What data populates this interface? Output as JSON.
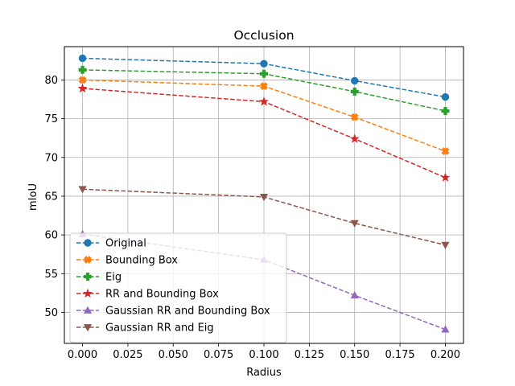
{
  "chart_data": {
    "type": "line",
    "title": "Occlusion",
    "xlabel": "Radius",
    "ylabel": "mIoU",
    "x": [
      0.0,
      0.1,
      0.15,
      0.2
    ],
    "xlim": [
      -0.01,
      0.21
    ],
    "ylim": [
      46,
      84.3
    ],
    "xticks": [
      0.0,
      0.025,
      0.05,
      0.075,
      0.1,
      0.125,
      0.15,
      0.175,
      0.2
    ],
    "xtick_labels": [
      "0.000",
      "0.025",
      "0.050",
      "0.075",
      "0.100",
      "0.125",
      "0.150",
      "0.175",
      "0.200"
    ],
    "yticks": [
      50,
      55,
      60,
      65,
      70,
      75,
      80
    ],
    "ytick_labels": [
      "50",
      "55",
      "60",
      "65",
      "70",
      "75",
      "80"
    ],
    "grid": true,
    "legend_position": "lower-left",
    "series": [
      {
        "name": "Original",
        "values": [
          82.8,
          82.1,
          79.9,
          77.8
        ],
        "color": "#1f77b4",
        "marker": "circle",
        "linestyle": "dashed"
      },
      {
        "name": "Bounding Box",
        "values": [
          80.0,
          79.2,
          75.2,
          70.8
        ],
        "color": "#ff7f0e",
        "marker": "x-filled",
        "linestyle": "dashed"
      },
      {
        "name": "Eig",
        "values": [
          81.3,
          80.8,
          78.5,
          76.0
        ],
        "color": "#2ca02c",
        "marker": "plus-filled",
        "linestyle": "dashed"
      },
      {
        "name": "RR and Bounding Box",
        "values": [
          78.9,
          77.2,
          72.4,
          67.4
        ],
        "color": "#d62728",
        "marker": "star",
        "linestyle": "dashed"
      },
      {
        "name": "Gaussian RR and Bounding Box",
        "values": [
          60.1,
          56.8,
          52.2,
          47.8
        ],
        "color": "#9467bd",
        "marker": "triangle-up",
        "linestyle": "dashed"
      },
      {
        "name": "Gaussian RR and Eig",
        "values": [
          65.9,
          64.9,
          61.5,
          58.7
        ],
        "color": "#8c564b",
        "marker": "triangle-down",
        "linestyle": "dashed"
      }
    ]
  }
}
